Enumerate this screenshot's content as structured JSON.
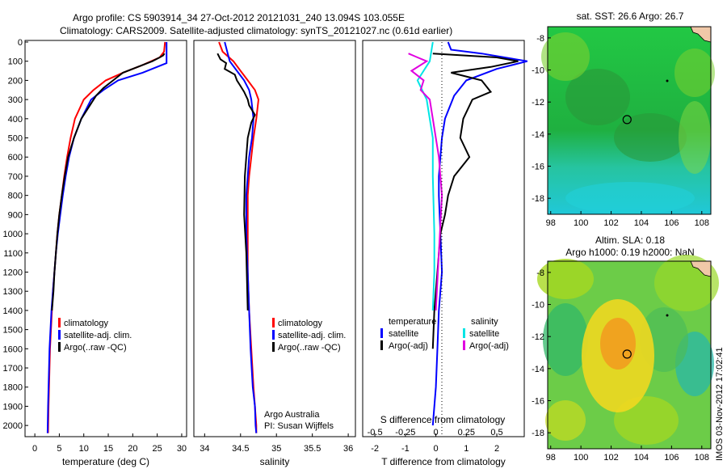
{
  "header": {
    "line1": "Argo profile: CS 5903914_34 27-Oct-2012 20121031_240 13.094S 103.055E",
    "line2": "Climatology: CARS2009. Satellite-adjusted climatology: synTS_20121027.nc (0.61d earlier)"
  },
  "colors": {
    "clim": "#ff0000",
    "sat": "#0000ff",
    "argo": "#000000",
    "sat_s": "#00e5e5",
    "argo_s": "#e000e0"
  },
  "chart_data": [
    {
      "id": "temperature",
      "type": "line",
      "xlabel": "temperature (deg C)",
      "ylabel": "",
      "xlim": [
        -2,
        31
      ],
      "ylim": [
        2050,
        0
      ],
      "xticks": [
        0,
        5,
        10,
        15,
        20,
        25,
        30
      ],
      "yticks": [
        0,
        100,
        200,
        300,
        400,
        500,
        600,
        700,
        800,
        900,
        1000,
        1100,
        1200,
        1300,
        1400,
        1500,
        1600,
        1700,
        1800,
        1900,
        2000
      ],
      "legend": [
        "climatology",
        "satellite-adj. clim.",
        "Argo(..raw -QC)"
      ],
      "series": [
        {
          "name": "climatology",
          "color": "#ff0000",
          "x": [
            26.6,
            26.4,
            25.5,
            22,
            18,
            14.5,
            12,
            10,
            8.2,
            7.3,
            6.6,
            6,
            5.5,
            5,
            4.6,
            4.3,
            4,
            3.7,
            3.5,
            3.3,
            3.1,
            3,
            2.9,
            2.8,
            2.7
          ],
          "y": [
            0,
            50,
            80,
            120,
            160,
            200,
            250,
            300,
            400,
            500,
            600,
            700,
            800,
            900,
            1000,
            1100,
            1200,
            1300,
            1400,
            1500,
            1600,
            1700,
            1800,
            1900,
            2040
          ]
        },
        {
          "name": "satellite-adj. clim.",
          "color": "#0000ff",
          "x": [
            26.9,
            26.9,
            26.9,
            26.9,
            22,
            17,
            14,
            11.5,
            9.5,
            8,
            7,
            6.3,
            5.7,
            5.2,
            4.7,
            4.3,
            4,
            3.7,
            3.4,
            3.2,
            3,
            2.9,
            2.8,
            2.7,
            2.6
          ],
          "y": [
            0,
            50,
            80,
            110,
            160,
            200,
            250,
            300,
            400,
            500,
            600,
            700,
            800,
            900,
            1000,
            1100,
            1200,
            1300,
            1400,
            1500,
            1600,
            1700,
            1800,
            1900,
            2040
          ]
        },
        {
          "name": "Argo(..raw -QC)",
          "color": "#000000",
          "x": [
            26.5,
            26.2,
            25.5,
            24,
            21,
            18,
            16,
            14,
            12.5,
            11.5,
            9.5,
            8,
            6.8,
            6.1,
            5.5,
            5,
            4.6,
            4.3,
            4,
            3.8,
            3.5
          ],
          "y": [
            60,
            70,
            80,
            100,
            130,
            160,
            200,
            240,
            280,
            320,
            400,
            500,
            600,
            700,
            800,
            900,
            1000,
            1100,
            1200,
            1300,
            1400
          ]
        }
      ]
    },
    {
      "id": "salinity",
      "type": "line",
      "xlabel": "salinity",
      "ylabel": "",
      "xlim": [
        33.85,
        36.1
      ],
      "ylim": [
        2050,
        0
      ],
      "xticks": [
        34,
        34.5,
        35,
        35.5,
        36
      ],
      "legend": [
        "climatology",
        "satellite-adj. clim.",
        "Argo(..raw -QC)"
      ],
      "annotation": [
        "Argo Australia",
        "PI: Susan Wijffels"
      ],
      "series": [
        {
          "name": "climatology",
          "color": "#ff0000",
          "x": [
            34.2,
            34.25,
            34.4,
            34.5,
            34.6,
            34.7,
            34.75,
            34.72,
            34.68,
            34.65,
            34.62,
            34.6,
            34.6,
            34.6,
            34.62,
            34.65,
            34.68,
            34.7,
            34.72,
            34.72
          ],
          "y": [
            0,
            50,
            100,
            150,
            200,
            250,
            300,
            400,
            500,
            600,
            700,
            800,
            1000,
            1200,
            1400,
            1600,
            1800,
            1900,
            2000,
            2040
          ]
        },
        {
          "name": "satellite-adj. clim.",
          "color": "#0000ff",
          "x": [
            34.28,
            34.35,
            34.45,
            34.55,
            34.62,
            34.65,
            34.68,
            34.66,
            34.62,
            34.6,
            34.58,
            34.58,
            34.6,
            34.62,
            34.64,
            34.67,
            34.7,
            34.71,
            34.72
          ],
          "y": [
            0,
            100,
            150,
            200,
            250,
            300,
            400,
            500,
            600,
            700,
            800,
            1000,
            1200,
            1400,
            1600,
            1800,
            1900,
            2000,
            2040
          ]
        },
        {
          "name": "Argo(..raw -QC)",
          "color": "#000000",
          "x": [
            34.18,
            34.22,
            34.3,
            34.28,
            34.42,
            34.45,
            34.5,
            34.55,
            34.6,
            34.62,
            34.7,
            34.65,
            34.6,
            34.58,
            34.56,
            34.55,
            34.58,
            34.6
          ],
          "y": [
            60,
            90,
            110,
            140,
            170,
            200,
            230,
            260,
            300,
            330,
            380,
            420,
            500,
            600,
            700,
            900,
            1100,
            1400
          ]
        }
      ]
    },
    {
      "id": "difference",
      "type": "line",
      "xlabel": "T difference from climatology",
      "xlabel2": "S difference from climatology",
      "xlim": [
        -2.4,
        2.9
      ],
      "ylim": [
        2050,
        0
      ],
      "xticks": [
        -2,
        -1,
        0,
        1,
        2
      ],
      "xticks2": [
        "-0.5",
        "-0.25",
        "0",
        "0.25",
        "0.5"
      ],
      "xticks2_pos": [
        -2,
        -1,
        0,
        1,
        2
      ],
      "legend_title_t": "temperature",
      "legend_title_s": "salinity",
      "legend": [
        "satellite",
        "Argo(-adj)",
        "satellite",
        "Argo(-adj)"
      ],
      "series": [
        {
          "name": "T satellite",
          "color": "#0000ff",
          "x": [
            0.4,
            0.5,
            1.5,
            3,
            2,
            1,
            0.6,
            0.3,
            0.2,
            0.1,
            0.1,
            0.15,
            0.2,
            0.1,
            0.05,
            0,
            -0.05,
            -0.1
          ],
          "y": [
            0,
            40,
            60,
            100,
            140,
            200,
            280,
            400,
            500,
            700,
            800,
            1000,
            1200,
            1400,
            1600,
            1800,
            1900,
            2000
          ]
        },
        {
          "name": "T Argo(-adj)",
          "color": "#000000",
          "x": [
            -0.1,
            2,
            2.7,
            1.8,
            0.5,
            1.5,
            1.8,
            1.2,
            0.9,
            0.8,
            1.1,
            0.6,
            0.4,
            0.3,
            0.15,
            0.05,
            -0.05,
            -0.1
          ],
          "y": [
            60,
            80,
            100,
            130,
            160,
            200,
            260,
            300,
            400,
            500,
            600,
            700,
            800,
            900,
            1000,
            1200,
            1400,
            1600
          ]
        },
        {
          "name": "S satellite",
          "color": "#00e5e5",
          "x": [
            -0.1,
            -0.2,
            -0.6,
            -0.3,
            -0.2,
            -0.1,
            -0.1,
            -0.05,
            -0.05,
            -0.1
          ],
          "y": [
            0,
            100,
            200,
            300,
            400,
            500,
            700,
            1000,
            1200,
            1400
          ]
        },
        {
          "name": "S Argo(-adj)",
          "color": "#e000e0",
          "x": [
            -0.9,
            -0.6,
            -0.3,
            -0.8,
            -0.4,
            -0.5,
            -0.2,
            -0.1,
            0.1,
            0.2,
            0.1,
            0
          ],
          "y": [
            60,
            80,
            100,
            150,
            200,
            250,
            300,
            400,
            600,
            800,
            1100,
            1400
          ]
        }
      ]
    }
  ],
  "maps": [
    {
      "title": "sat. SST: 26.6  Argo: 26.7",
      "xticks": [
        "98",
        "100",
        "102",
        "104",
        "106",
        "108"
      ],
      "yticks": [
        "-8",
        "-10",
        "-12",
        "-14",
        "-16",
        "-18"
      ],
      "lonlim": [
        97.8,
        108.6
      ],
      "latlim": [
        -7.3,
        -19
      ]
    },
    {
      "title1": "Altim. SLA: 0.18",
      "title2": "Argo h1000: 0.19 h2000: NaN",
      "xticks": [
        "98",
        "100",
        "102",
        "104",
        "106",
        "108"
      ],
      "yticks": [
        "-8",
        "-10",
        "-12",
        "-14",
        "-16",
        "-18"
      ],
      "lonlim": [
        97.8,
        108.6
      ],
      "latlim": [
        -7.3,
        -19
      ]
    }
  ],
  "argo_position": {
    "lon": 103.055,
    "lat": -13.094
  },
  "footer": "IMOS 03-Nov-2012 17:02:41"
}
